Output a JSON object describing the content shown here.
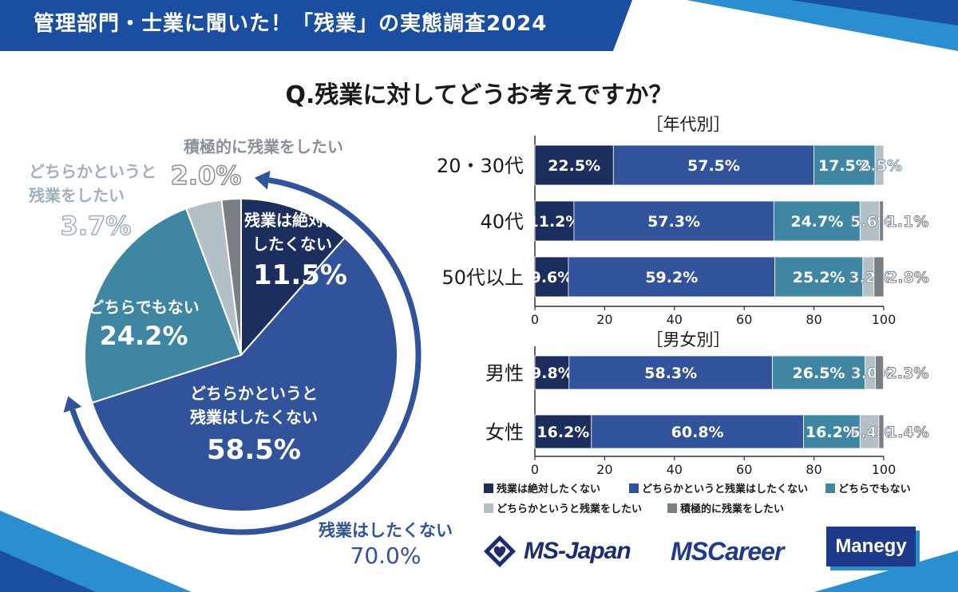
{
  "banner": {
    "title": "管理部門・士業に聞いた！「残業」の実態調査2024"
  },
  "question": "Q.残業に対してどうお考えですか？",
  "colors": {
    "c1": "#1c2e5e",
    "c2": "#31539b",
    "c3": "#3f86a3",
    "c4": "#b4c0c7",
    "c5": "#7a7f83",
    "banner": "#1a4ea0",
    "accent": "#2a8fd0"
  },
  "chart_data": [
    {
      "type": "pie",
      "title": "Q.残業に対してどうお考えですか？",
      "slices": [
        {
          "label_lines": [
            "残業は絶対に",
            "したくない"
          ],
          "value": 11.5,
          "value_label": "11.5%"
        },
        {
          "label_lines": [
            "どちらかというと",
            "残業はしたくない"
          ],
          "value": 58.5,
          "value_label": "58.5%"
        },
        {
          "label_lines": [
            "どちらでもない"
          ],
          "value": 24.2,
          "value_label": "24.2%"
        },
        {
          "label_lines": [
            "どちらかというと",
            "残業をしたい"
          ],
          "value": 3.7,
          "value_label": "3.7%"
        },
        {
          "label_lines": [
            "積極的に残業をしたい"
          ],
          "value": 2.0,
          "value_label": "2.0%"
        }
      ],
      "summary": {
        "label": "残業はしたくない",
        "value": 70.0,
        "value_label": "70.0%"
      }
    },
    {
      "type": "bar",
      "orientation": "horizontal",
      "stacked": true,
      "title": "［年代別］",
      "categories": [
        "20・30代",
        "40代",
        "50代以上"
      ],
      "series": [
        {
          "name": "残業は絶対したくない",
          "values": [
            22.5,
            11.2,
            9.6
          ],
          "labels": [
            "22.5%",
            "11.2%",
            "9.6%"
          ]
        },
        {
          "name": "どちらかというと残業はしたくない",
          "values": [
            57.5,
            57.3,
            59.2
          ],
          "labels": [
            "57.5%",
            "57.3%",
            "59.2%"
          ]
        },
        {
          "name": "どちらでもない",
          "values": [
            17.5,
            24.7,
            25.2
          ],
          "labels": [
            "17.5%",
            "24.7%",
            "25.2%"
          ]
        },
        {
          "name": "どちらかというと残業をしたい",
          "values": [
            2.5,
            5.6,
            3.2
          ],
          "labels": [
            "2.5%",
            "5.6%",
            "3.2%"
          ]
        },
        {
          "name": "積極的に残業をしたい",
          "values": [
            0,
            1.1,
            2.8
          ],
          "labels": [
            "",
            "1.1%",
            "2.8%"
          ]
        }
      ],
      "xlim": [
        0,
        100
      ],
      "xticks": [
        "0",
        "20",
        "40",
        "60",
        "80",
        "100"
      ]
    },
    {
      "type": "bar",
      "orientation": "horizontal",
      "stacked": true,
      "title": "［男女別］",
      "categories": [
        "男性",
        "女性"
      ],
      "series": [
        {
          "name": "残業は絶対したくない",
          "values": [
            9.8,
            16.2
          ],
          "labels": [
            "9.8%",
            "16.2%"
          ]
        },
        {
          "name": "どちらかというと残業はしたくない",
          "values": [
            58.3,
            60.8
          ],
          "labels": [
            "58.3%",
            "60.8%"
          ]
        },
        {
          "name": "どちらでもない",
          "values": [
            26.5,
            16.2
          ],
          "labels": [
            "26.5%",
            "16.2%"
          ]
        },
        {
          "name": "どちらかというと残業をしたい",
          "values": [
            3.0,
            5.4
          ],
          "labels": [
            "3.0%",
            "5.4%"
          ]
        },
        {
          "name": "積極的に残業をしたい",
          "values": [
            2.3,
            1.4
          ],
          "labels": [
            "2.3%",
            "1.4%"
          ]
        }
      ],
      "xlim": [
        0,
        100
      ],
      "xticks": [
        "0",
        "20",
        "40",
        "60",
        "80",
        "100"
      ]
    }
  ],
  "legend": [
    {
      "label": "残業は絶対したくない"
    },
    {
      "label": "どちらかというと残業はしたくない"
    },
    {
      "label": "どちらでもない"
    },
    {
      "label": "どちらかというと残業をしたい"
    },
    {
      "label": "積極的に残業をしたい"
    }
  ],
  "logos": {
    "msjapan": "MS-Japan",
    "mscareer": "MSCareer",
    "manegy": "Manegy"
  }
}
